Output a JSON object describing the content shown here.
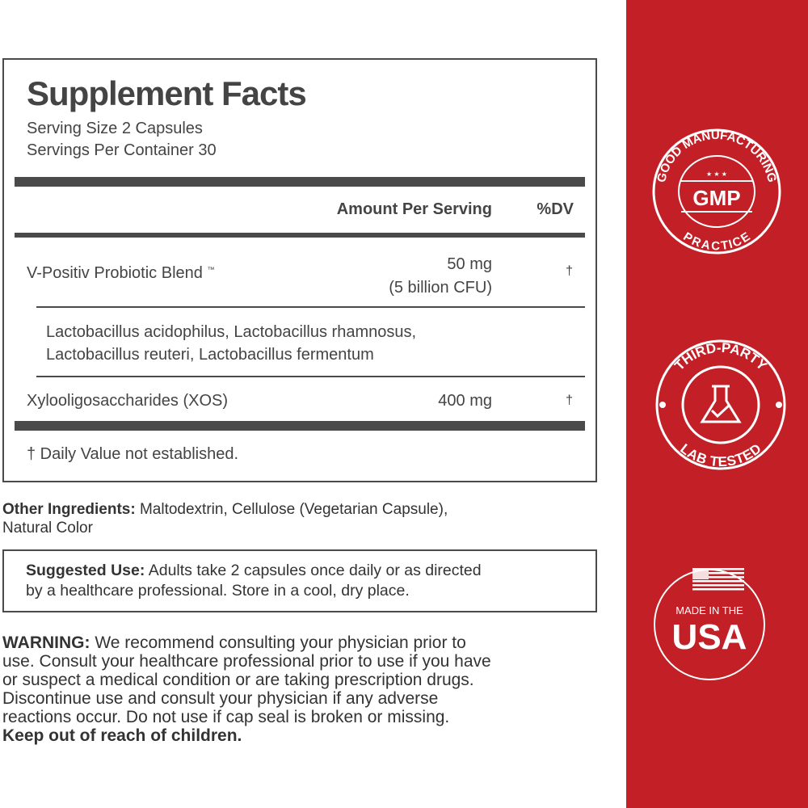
{
  "facts": {
    "title": "Supplement Facts",
    "serving_size": "Serving Size 2 Capsules",
    "servings_per_container": "Servings Per Container 30",
    "header_amount": "Amount Per Serving",
    "header_dv": "%DV",
    "rows": [
      {
        "name": "V-Positiv Probiotic Blend",
        "mark": "™",
        "amount": "50 mg",
        "amount_sub": "(5 billion CFU)",
        "dv": "†"
      },
      {
        "name": "Xylooligosaccharides (XOS)",
        "amount": "400 mg",
        "dv": "†"
      }
    ],
    "blend_line1": "Lactobacillus acidophilus, Lactobacillus rhamnosus,",
    "blend_line2": "Lactobacillus reuteri, Lactobacillus fermentum",
    "footnote": "† Daily Value not established."
  },
  "other_ingredients": {
    "label": "Other Ingredients:",
    "text": " Maltodextrin, Cellulose (Vegetarian Capsule),",
    "text2": "Natural Color"
  },
  "suggested_use": {
    "label": "Suggested Use:",
    "text": " Adults take 2 capsules once daily or as directed",
    "text2": "by a healthcare professional. Store in a cool, dry place."
  },
  "warning": {
    "label": "WARNING:",
    "lines": [
      " We recommend consulting your physician prior to",
      "use. Consult your healthcare professional prior to use if you have",
      "or suspect a medical condition or are taking prescription drugs.",
      "Discontinue use and consult your physician if any adverse",
      "reactions occur. Do not use if cap seal is broken or missing."
    ],
    "bold_line": "Keep out of reach of children."
  },
  "badges": {
    "accent": "#c21f26",
    "gmp": {
      "top": "GOOD MANUFACTURING",
      "center": "GMP",
      "bottom": "PRACTICE",
      "stars": "★ ★ ★"
    },
    "lab": {
      "top": "THIRD-PARTY",
      "bottom": "LAB TESTED",
      "icon": "flask-check-icon"
    },
    "usa": {
      "line1": "MADE IN THE",
      "line2": "USA",
      "icon": "us-flag-icon"
    }
  }
}
